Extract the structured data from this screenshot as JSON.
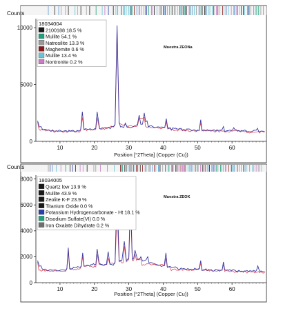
{
  "colors": {
    "blue_trace": "#2d2f9e",
    "red_trace": "#d83a4b",
    "axis": "#222222"
  },
  "chart_data": [
    {
      "type": "line",
      "counts_label": "Counts",
      "sample_id": "18034004",
      "annotation": "Muestra ZEONa",
      "xlabel": "Position [°2Theta] (Copper (Cu))",
      "x_ticks": [
        10,
        20,
        30,
        40,
        50,
        60
      ],
      "y_ticks": [
        0,
        5000,
        10000
      ],
      "xlim": [
        3,
        70
      ],
      "ylim": [
        0,
        10800
      ],
      "legend": [
        {
          "label": "2100188 18.5 %",
          "color": "#1a1a1a"
        },
        {
          "label": "Mullite 54.1 %",
          "color": "#1fa07a"
        },
        {
          "label": "Natrosilite 13.3 %",
          "color": "#9a9a9a"
        },
        {
          "label": "Maghemite 0.6 %",
          "color": "#8b1a1a"
        },
        {
          "label": "Mullite 13.4 %",
          "color": "#66c4d6"
        },
        {
          "label": "Nontronite 0.2 %",
          "color": "#c97bc4"
        }
      ],
      "series": [
        {
          "color": "#2d2f9e",
          "x": [
            3.5,
            4.5,
            5.5,
            7,
            9,
            11,
            13,
            15,
            16,
            16.5,
            17,
            18,
            20,
            20.8,
            21.5,
            23,
            25,
            26,
            26.6,
            27.2,
            28,
            29,
            30,
            31,
            32,
            33,
            33.5,
            34.5,
            35.3,
            36,
            37,
            38,
            39,
            40,
            40.9,
            42,
            44,
            46,
            48,
            50,
            50.9,
            52,
            54,
            56,
            57.5,
            59,
            60.5,
            62,
            64,
            66,
            67.4,
            68.5,
            69.5
          ],
          "values": [
            1800,
            1300,
            1050,
            980,
            920,
            900,
            900,
            950,
            1000,
            2600,
            1050,
            1050,
            1100,
            2600,
            1150,
            1200,
            1300,
            1500,
            10200,
            1700,
            1300,
            1600,
            1250,
            1250,
            1400,
            2300,
            1500,
            2500,
            1800,
            1350,
            1300,
            1250,
            1250,
            1250,
            2000,
            1200,
            1100,
            1050,
            1000,
            1000,
            1900,
            1000,
            950,
            950,
            1300,
            950,
            1200,
            950,
            950,
            900,
            1150,
            900,
            850
          ]
        },
        {
          "color": "#d83a4b",
          "x": [
            3.5,
            5,
            7,
            10,
            13,
            16,
            16.5,
            17,
            20,
            20.8,
            21.5,
            24,
            26,
            26.6,
            27.2,
            29,
            32,
            33,
            34.5,
            36,
            40,
            40.9,
            42,
            46,
            50,
            50.9,
            52,
            56,
            60,
            64,
            69.5
          ],
          "values": [
            1700,
            1050,
            950,
            880,
            880,
            950,
            2100,
            1000,
            1050,
            2100,
            1100,
            1250,
            1450,
            9600,
            1600,
            1500,
            1300,
            2000,
            2100,
            1300,
            1200,
            1750,
            1150,
            1000,
            950,
            1600,
            950,
            900,
            900,
            900,
            820
          ]
        }
      ]
    },
    {
      "type": "line",
      "counts_label": "Counts",
      "sample_id": "18034005",
      "annotation": "Muestra ZEOK",
      "xlabel": "Position [°2Theta] (Copper (Cu))",
      "x_ticks": [
        10,
        20,
        30,
        40,
        50,
        60
      ],
      "y_ticks": [
        0,
        2000,
        4000,
        6000,
        8000
      ],
      "xlim": [
        3,
        70
      ],
      "ylim": [
        0,
        8300
      ],
      "legend": [
        {
          "label": "Quartz low 13.9 %",
          "color": "#1a1a1a"
        },
        {
          "label": "Mullite 43.9 %",
          "color": "#1a1a1a"
        },
        {
          "label": "Zeolite K-F 23.9 %",
          "color": "#1a1a1a"
        },
        {
          "label": "Titanium Oxide 0.0 %",
          "color": "#1a1a1a"
        },
        {
          "label": "Potassium Hydrogencarbonate - Ht 18.1 %",
          "color": "#2a3fae"
        },
        {
          "label": "Disodium Sulfate(VI) 0.0 %",
          "color": "#1fa07a"
        },
        {
          "label": "Iron Oxalate Dihydrate 0.2 %",
          "color": "#6f6f6f"
        }
      ],
      "series": [
        {
          "color": "#2d2f9e",
          "x": [
            3.5,
            4.5,
            6,
            8,
            10,
            12,
            12.4,
            12.8,
            14,
            16.2,
            16.6,
            17,
            19,
            20.8,
            21.4,
            23,
            24,
            25,
            26,
            26.6,
            27.2,
            28,
            28.7,
            29.3,
            30,
            30.5,
            31,
            31.8,
            32.5,
            33.5,
            34.5,
            35.5,
            37,
            38,
            39,
            40.3,
            40.8,
            42,
            44,
            46,
            48,
            50,
            50.9,
            52,
            54,
            56,
            57.5,
            59,
            60.5,
            62,
            64,
            66,
            67.5,
            68.5,
            69.5
          ],
          "values": [
            1700,
            1300,
            1000,
            950,
            950,
            1100,
            2700,
            1100,
            1200,
            1300,
            2300,
            1300,
            1400,
            2600,
            1500,
            1400,
            2400,
            1400,
            1600,
            7400,
            1700,
            1700,
            3200,
            1700,
            1900,
            6200,
            1800,
            2500,
            1800,
            2000,
            1700,
            2000,
            1500,
            1400,
            1350,
            1300,
            2300,
            1250,
            1150,
            1100,
            1050,
            1050,
            1700,
            1000,
            1000,
            950,
            1600,
            950,
            1000,
            950,
            900,
            900,
            1300,
            900,
            850
          ]
        },
        {
          "color": "#d83a4b",
          "x": [
            3.5,
            6,
            10,
            12,
            12.4,
            12.8,
            16.2,
            16.6,
            17,
            20.8,
            21.4,
            24,
            26,
            26.6,
            27.2,
            28.7,
            29.3,
            30,
            30.5,
            31,
            31.8,
            33.5,
            37,
            40.8,
            42,
            46,
            50.9,
            52,
            57.5,
            59,
            64,
            69.5
          ],
          "values": [
            1600,
            950,
            900,
            1050,
            2500,
            1050,
            1250,
            2000,
            1250,
            2200,
            1400,
            1900,
            1500,
            5400,
            1600,
            2800,
            1600,
            1800,
            7700,
            1700,
            2200,
            1800,
            1400,
            1900,
            1150,
            1000,
            1500,
            950,
            1400,
            900,
            850,
            800
          ]
        }
      ]
    }
  ]
}
